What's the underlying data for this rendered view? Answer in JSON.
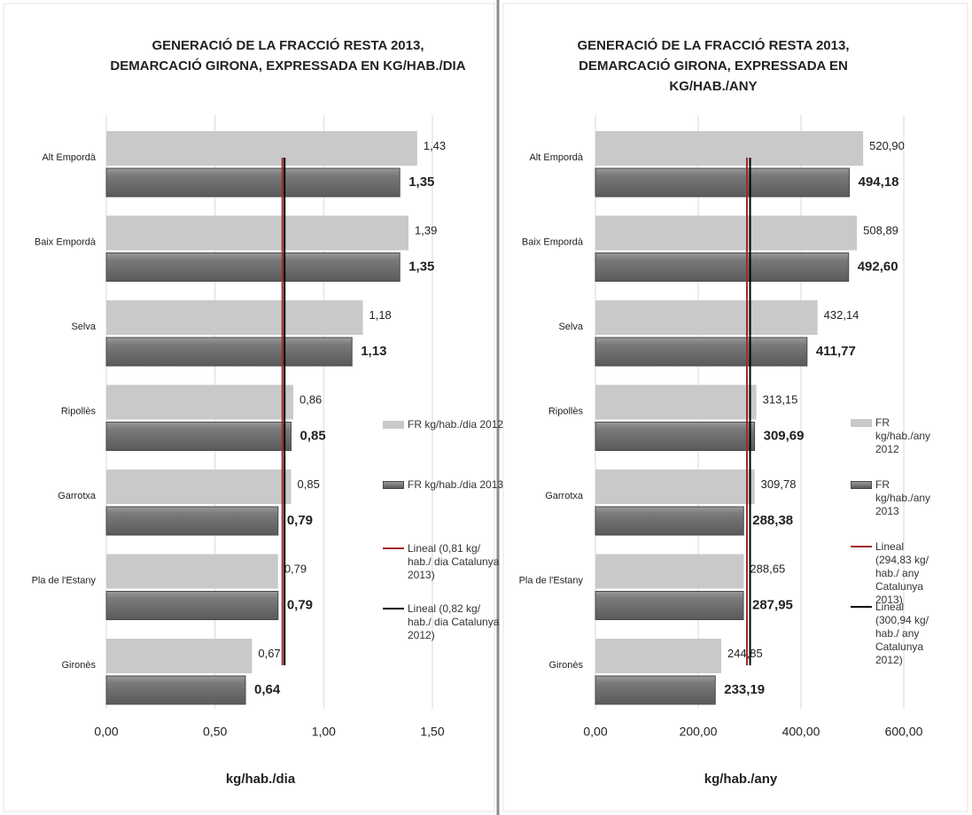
{
  "chart_data": [
    {
      "type": "bar",
      "orientation": "horizontal",
      "title": [
        "GENERACIÓ DE LA FRACCIÓ RESTA 2013,",
        "DEMARCACIÓ GIRONA, EXPRESSADA EN KG/HAB./DIA"
      ],
      "x_label": "kg/hab./dia",
      "categories": [
        "Alt Empordà",
        "Baix Empordà",
        "Selva",
        "Ripollès",
        "Garrotxa",
        "Pla de l'Estany",
        "Gironès"
      ],
      "series": [
        {
          "name": "FR kg/hab./dia 2012",
          "color": "#c9c9c9",
          "values": [
            1.43,
            1.39,
            1.18,
            0.86,
            0.85,
            0.79,
            0.67
          ],
          "value_labels": [
            "1,43",
            "1,39",
            "1,18",
            "0,86",
            "0,85",
            "0,79",
            "0,67"
          ]
        },
        {
          "name": "FR kg/hab./dia 2013",
          "color": "#7a7a7a",
          "values": [
            1.35,
            1.35,
            1.13,
            0.85,
            0.79,
            0.79,
            0.64
          ],
          "value_labels": [
            "1,35",
            "1,35",
            "1,13",
            "0,85",
            "0,79",
            "0,79",
            "0,64"
          ]
        }
      ],
      "reference_lines": [
        {
          "name": "Lineal (0,81 kg/ hab./ dia Catalunya 2013)",
          "color": "#a3282c",
          "value": 0.81
        },
        {
          "name": "Lineal (0,82 kg/ hab./ dia Catalunya 2012)",
          "color": "#000000",
          "value": 0.82
        }
      ],
      "xlim": [
        0,
        1.5
      ],
      "xticks": [
        {
          "value": 0,
          "label": "0,00"
        },
        {
          "value": 0.5,
          "label": "0,50"
        },
        {
          "value": 1,
          "label": "1,00"
        },
        {
          "value": 1.5,
          "label": "1,50"
        }
      ],
      "grid": true
    },
    {
      "type": "bar",
      "orientation": "horizontal",
      "title": [
        "GENERACIÓ DE LA FRACCIÓ RESTA 2013,",
        "DEMARCACIÓ GIRONA, EXPRESSADA EN",
        "KG/HAB./ANY"
      ],
      "x_label": "kg/hab./any",
      "categories": [
        "Alt Empordà",
        "Baix Empordà",
        "Selva",
        "Ripollès",
        "Garrotxa",
        "Pla de l'Estany",
        "Gironès"
      ],
      "series": [
        {
          "name": "FR kg/hab./any 2012",
          "color": "#c9c9c9",
          "values": [
            520.9,
            508.89,
            432.14,
            313.15,
            309.78,
            288.65,
            244.85
          ],
          "value_labels": [
            "520,90",
            "508,89",
            "432,14",
            "313,15",
            "309,78",
            "288,65",
            "244,85"
          ]
        },
        {
          "name": "FR kg/hab./any 2013",
          "color": "#7a7a7a",
          "values": [
            494.18,
            492.6,
            411.77,
            309.69,
            288.38,
            287.95,
            233.19
          ],
          "value_labels": [
            "494,18",
            "492,60",
            "411,77",
            "309,69",
            "288,38",
            "287,95",
            "233,19"
          ]
        }
      ],
      "reference_lines": [
        {
          "name": "Lineal (294,83 kg/ hab./ any Catalunya 2013)",
          "color": "#a3282c",
          "value": 294.83
        },
        {
          "name": "Lineal (300,94 kg/ hab./ any Catalunya 2012)",
          "color": "#000000",
          "value": 300.94
        }
      ],
      "xlim": [
        0,
        600
      ],
      "xticks": [
        {
          "value": 0,
          "label": "0,00"
        },
        {
          "value": 200,
          "label": "200,00"
        },
        {
          "value": 400,
          "label": "400,00"
        },
        {
          "value": 600,
          "label": "600,00"
        }
      ],
      "grid": true
    }
  ]
}
